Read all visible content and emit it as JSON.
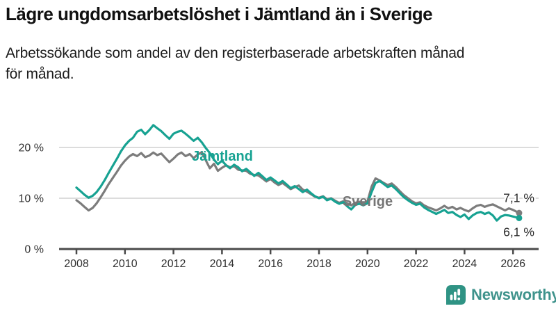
{
  "header": {
    "title": "Lägre ungdomsarbetslöshet i Jämtland än i Sverige",
    "subtitle_line1": "Arbetssökande som andel av den registerbaserade arbetskraften månad",
    "subtitle_line2": "för månad."
  },
  "chart_data": {
    "type": "line",
    "title": "Lägre ungdomsarbetslöshet i Jämtland än i Sverige",
    "xlabel": "",
    "ylabel": "",
    "xlim": [
      2007.28,
      2027.0
    ],
    "ylim": [
      0,
      25
    ],
    "grid": "horizontal-only",
    "gridline_color": "#dcdcdc",
    "axis_color": "#4a4a4a",
    "tick_label_color": "#333333",
    "x_ticks": [
      2008,
      2010,
      2012,
      2014,
      2016,
      2018,
      2020,
      2022,
      2024,
      2026
    ],
    "x_tick_labels": [
      "2008",
      "2010",
      "2012",
      "2014",
      "2016",
      "2018",
      "2020",
      "2022",
      "2024",
      "2026"
    ],
    "y_ticks": [
      0,
      10,
      20
    ],
    "y_tick_labels": [
      "0 %",
      "10 %",
      "20 %"
    ],
    "legend_position": "inline-labels-on-lines",
    "series": [
      {
        "name": "Sverige",
        "color": "#7c7c7c",
        "label_color": "#757575",
        "label_x": 2018.97,
        "label_y": 8.49,
        "end_label": "7,1 %",
        "end_label_position": "above",
        "points": [
          [
            2008.0,
            9.6
          ],
          [
            2008.17,
            9.0
          ],
          [
            2008.33,
            8.3
          ],
          [
            2008.5,
            7.6
          ],
          [
            2008.67,
            8.1
          ],
          [
            2008.83,
            9.0
          ],
          [
            2009.0,
            10.2
          ],
          [
            2009.17,
            11.5
          ],
          [
            2009.33,
            12.8
          ],
          [
            2009.5,
            14.0
          ],
          [
            2009.67,
            15.2
          ],
          [
            2009.83,
            16.4
          ],
          [
            2010.0,
            17.4
          ],
          [
            2010.17,
            18.2
          ],
          [
            2010.33,
            18.7
          ],
          [
            2010.5,
            18.3
          ],
          [
            2010.67,
            18.9
          ],
          [
            2010.83,
            18.1
          ],
          [
            2011.0,
            18.4
          ],
          [
            2011.17,
            19.0
          ],
          [
            2011.33,
            18.5
          ],
          [
            2011.5,
            18.8
          ],
          [
            2011.67,
            17.9
          ],
          [
            2011.83,
            17.1
          ],
          [
            2012.0,
            17.8
          ],
          [
            2012.17,
            18.6
          ],
          [
            2012.33,
            19.0
          ],
          [
            2012.5,
            18.3
          ],
          [
            2012.67,
            18.7
          ],
          [
            2012.83,
            17.9
          ],
          [
            2013.0,
            18.6
          ],
          [
            2013.17,
            19.1
          ],
          [
            2013.33,
            17.5
          ],
          [
            2013.5,
            15.9
          ],
          [
            2013.67,
            16.8
          ],
          [
            2013.83,
            15.4
          ],
          [
            2014.0,
            16.0
          ],
          [
            2014.17,
            16.5
          ],
          [
            2014.33,
            16.1
          ],
          [
            2014.5,
            16.3
          ],
          [
            2014.67,
            15.6
          ],
          [
            2014.83,
            15.5
          ],
          [
            2015.0,
            15.4
          ],
          [
            2015.17,
            14.8
          ],
          [
            2015.33,
            14.6
          ],
          [
            2015.5,
            14.5
          ],
          [
            2015.67,
            13.9
          ],
          [
            2015.83,
            13.3
          ],
          [
            2016.0,
            13.8
          ],
          [
            2016.17,
            13.1
          ],
          [
            2016.33,
            12.6
          ],
          [
            2016.5,
            13.0
          ],
          [
            2016.67,
            12.4
          ],
          [
            2016.83,
            11.8
          ],
          [
            2017.0,
            12.2
          ],
          [
            2017.17,
            12.5
          ],
          [
            2017.33,
            11.7
          ],
          [
            2017.5,
            11.3
          ],
          [
            2017.67,
            10.8
          ],
          [
            2017.83,
            10.3
          ],
          [
            2018.0,
            10.1
          ],
          [
            2018.17,
            10.4
          ],
          [
            2018.33,
            9.8
          ],
          [
            2018.5,
            10.0
          ],
          [
            2018.67,
            9.5
          ],
          [
            2018.83,
            9.1
          ],
          [
            2019.0,
            9.4
          ],
          [
            2019.17,
            9.0
          ],
          [
            2019.33,
            8.6
          ],
          [
            2019.5,
            9.1
          ],
          [
            2019.67,
            9.3
          ],
          [
            2019.83,
            9.0
          ],
          [
            2020.0,
            9.4
          ],
          [
            2020.17,
            12.3
          ],
          [
            2020.33,
            13.9
          ],
          [
            2020.5,
            13.5
          ],
          [
            2020.67,
            13.0
          ],
          [
            2020.83,
            12.6
          ],
          [
            2021.0,
            12.9
          ],
          [
            2021.17,
            12.2
          ],
          [
            2021.33,
            11.4
          ],
          [
            2021.5,
            10.6
          ],
          [
            2021.67,
            10.0
          ],
          [
            2021.83,
            9.4
          ],
          [
            2022.0,
            9.0
          ],
          [
            2022.17,
            9.2
          ],
          [
            2022.33,
            8.6
          ],
          [
            2022.5,
            8.2
          ],
          [
            2022.67,
            7.9
          ],
          [
            2022.83,
            7.6
          ],
          [
            2023.0,
            8.0
          ],
          [
            2023.17,
            8.5
          ],
          [
            2023.33,
            8.0
          ],
          [
            2023.5,
            8.3
          ],
          [
            2023.67,
            7.8
          ],
          [
            2023.83,
            8.1
          ],
          [
            2024.0,
            7.7
          ],
          [
            2024.17,
            7.4
          ],
          [
            2024.33,
            8.0
          ],
          [
            2024.5,
            8.5
          ],
          [
            2024.67,
            8.7
          ],
          [
            2024.83,
            8.3
          ],
          [
            2025.0,
            8.6
          ],
          [
            2025.17,
            8.8
          ],
          [
            2025.33,
            8.4
          ],
          [
            2025.5,
            8.0
          ],
          [
            2025.67,
            7.6
          ],
          [
            2025.83,
            8.0
          ],
          [
            2026.0,
            7.7
          ],
          [
            2026.25,
            7.1
          ]
        ]
      },
      {
        "name": "Jämtland",
        "color": "#17a292",
        "label_color": "#17a292",
        "label_x": 2012.76,
        "label_y": 17.4,
        "end_label": "6,1 %",
        "end_label_position": "below",
        "points": [
          [
            2008.0,
            12.1
          ],
          [
            2008.17,
            11.4
          ],
          [
            2008.33,
            10.7
          ],
          [
            2008.5,
            10.1
          ],
          [
            2008.67,
            10.5
          ],
          [
            2008.83,
            11.2
          ],
          [
            2009.0,
            12.3
          ],
          [
            2009.17,
            13.6
          ],
          [
            2009.33,
            15.0
          ],
          [
            2009.5,
            16.4
          ],
          [
            2009.67,
            17.8
          ],
          [
            2009.83,
            19.2
          ],
          [
            2010.0,
            20.4
          ],
          [
            2010.17,
            21.3
          ],
          [
            2010.33,
            21.9
          ],
          [
            2010.5,
            23.1
          ],
          [
            2010.67,
            23.5
          ],
          [
            2010.83,
            22.6
          ],
          [
            2011.0,
            23.4
          ],
          [
            2011.17,
            24.4
          ],
          [
            2011.33,
            23.8
          ],
          [
            2011.5,
            23.2
          ],
          [
            2011.67,
            22.4
          ],
          [
            2011.83,
            21.7
          ],
          [
            2012.0,
            22.7
          ],
          [
            2012.17,
            23.1
          ],
          [
            2012.33,
            23.3
          ],
          [
            2012.5,
            22.7
          ],
          [
            2012.67,
            22.0
          ],
          [
            2012.83,
            21.3
          ],
          [
            2013.0,
            21.9
          ],
          [
            2013.17,
            21.0
          ],
          [
            2013.33,
            19.9
          ],
          [
            2013.5,
            18.9
          ],
          [
            2013.67,
            17.6
          ],
          [
            2013.83,
            16.7
          ],
          [
            2014.0,
            17.4
          ],
          [
            2014.17,
            16.5
          ],
          [
            2014.33,
            15.9
          ],
          [
            2014.5,
            16.6
          ],
          [
            2014.67,
            16.1
          ],
          [
            2014.83,
            15.3
          ],
          [
            2015.0,
            15.8
          ],
          [
            2015.17,
            15.1
          ],
          [
            2015.33,
            14.4
          ],
          [
            2015.5,
            15.0
          ],
          [
            2015.67,
            14.3
          ],
          [
            2015.83,
            13.6
          ],
          [
            2016.0,
            14.1
          ],
          [
            2016.17,
            13.5
          ],
          [
            2016.33,
            12.9
          ],
          [
            2016.5,
            13.4
          ],
          [
            2016.67,
            12.7
          ],
          [
            2016.83,
            12.0
          ],
          [
            2017.0,
            12.4
          ],
          [
            2017.17,
            11.8
          ],
          [
            2017.33,
            11.2
          ],
          [
            2017.5,
            11.7
          ],
          [
            2017.67,
            11.0
          ],
          [
            2017.83,
            10.4
          ],
          [
            2018.0,
            10.0
          ],
          [
            2018.17,
            10.3
          ],
          [
            2018.33,
            9.6
          ],
          [
            2018.5,
            9.9
          ],
          [
            2018.67,
            9.3
          ],
          [
            2018.83,
            8.9
          ],
          [
            2019.0,
            9.2
          ],
          [
            2019.17,
            8.4
          ],
          [
            2019.33,
            7.8
          ],
          [
            2019.5,
            8.7
          ],
          [
            2019.67,
            8.9
          ],
          [
            2019.83,
            8.6
          ],
          [
            2020.0,
            9.0
          ],
          [
            2020.17,
            11.2
          ],
          [
            2020.33,
            13.0
          ],
          [
            2020.5,
            13.4
          ],
          [
            2020.67,
            12.8
          ],
          [
            2020.83,
            12.2
          ],
          [
            2021.0,
            12.5
          ],
          [
            2021.17,
            11.8
          ],
          [
            2021.33,
            11.0
          ],
          [
            2021.5,
            10.2
          ],
          [
            2021.67,
            9.6
          ],
          [
            2021.83,
            9.1
          ],
          [
            2022.0,
            8.7
          ],
          [
            2022.17,
            8.9
          ],
          [
            2022.33,
            8.2
          ],
          [
            2022.5,
            7.7
          ],
          [
            2022.67,
            7.3
          ],
          [
            2022.83,
            6.9
          ],
          [
            2023.0,
            7.3
          ],
          [
            2023.17,
            7.7
          ],
          [
            2023.33,
            7.1
          ],
          [
            2023.5,
            7.3
          ],
          [
            2023.67,
            6.7
          ],
          [
            2023.83,
            6.3
          ],
          [
            2024.0,
            6.8
          ],
          [
            2024.17,
            5.9
          ],
          [
            2024.33,
            6.6
          ],
          [
            2024.5,
            7.1
          ],
          [
            2024.67,
            7.3
          ],
          [
            2024.83,
            6.9
          ],
          [
            2025.0,
            7.2
          ],
          [
            2025.17,
            6.6
          ],
          [
            2025.33,
            5.6
          ],
          [
            2025.5,
            6.4
          ],
          [
            2025.67,
            6.7
          ],
          [
            2025.83,
            6.6
          ],
          [
            2026.0,
            6.4
          ],
          [
            2026.25,
            6.1
          ]
        ]
      }
    ]
  },
  "footer": {
    "brand": "Newsworthy",
    "brand_color": "#3f938c",
    "icon": "newsworthy-bars-icon",
    "icon_color": "#2f9384"
  }
}
